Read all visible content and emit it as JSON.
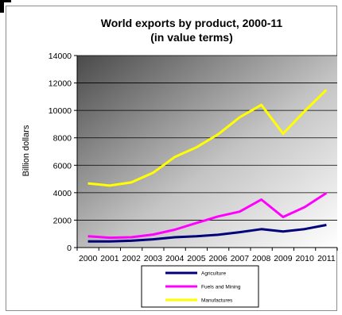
{
  "chart_data": {
    "type": "line",
    "title": "World exports by product, 2000-11",
    "subtitle": "(in value terms)",
    "xlabel": "",
    "ylabel": "Billion dollars",
    "ylim": [
      0,
      14000
    ],
    "yticks": [
      0,
      2000,
      4000,
      6000,
      8000,
      10000,
      12000,
      14000
    ],
    "x": [
      "2000",
      "2001",
      "2002",
      "2003",
      "2004",
      "2005",
      "2006",
      "2007",
      "2008",
      "2009",
      "2010",
      "2011"
    ],
    "series": [
      {
        "name": "Agriculture",
        "color": "#00007a",
        "values": [
          450,
          450,
          500,
          600,
          750,
          820,
          930,
          1120,
          1340,
          1170,
          1350,
          1650
        ]
      },
      {
        "name": "Fuels and Mining",
        "color": "#ff00ff",
        "values": [
          830,
          720,
          750,
          950,
          1300,
          1790,
          2270,
          2620,
          3500,
          2230,
          2950,
          3980
        ]
      },
      {
        "name": "Manufactures",
        "color": "#ffff00",
        "values": [
          4680,
          4520,
          4750,
          5450,
          6600,
          7300,
          8250,
          9500,
          10400,
          8300,
          9950,
          11500
        ]
      }
    ],
    "grid": true,
    "legend_position": "bottom"
  }
}
